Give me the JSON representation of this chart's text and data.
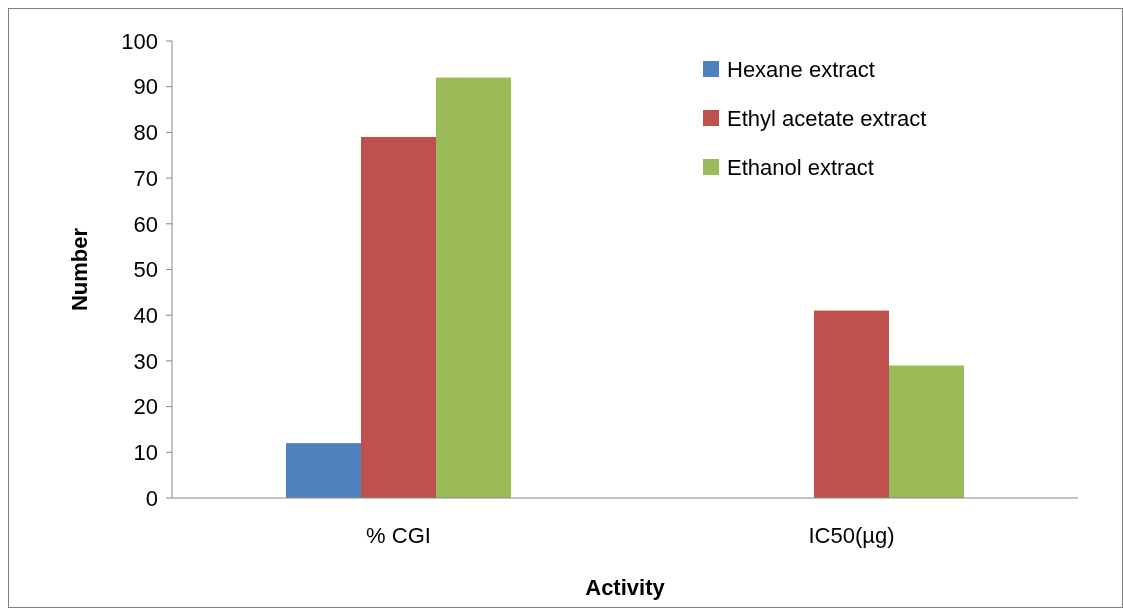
{
  "chart_data": {
    "type": "bar",
    "xlabel": "Activity",
    "ylabel": "Number",
    "categories": [
      "% CGI",
      "IC50(µg)"
    ],
    "series": [
      {
        "name": "Hexane extract",
        "color": "#4f81bd",
        "values": [
          12,
          null
        ]
      },
      {
        "name": "Ethyl acetate extract",
        "color": "#c0504d",
        "values": [
          79,
          41
        ]
      },
      {
        "name": "Ethanol extract",
        "color": "#9bbb59",
        "values": [
          92,
          29
        ]
      }
    ],
    "ylim": [
      0,
      100
    ],
    "yticks": [
      0,
      10,
      20,
      30,
      40,
      50,
      60,
      70,
      80,
      90,
      100
    ],
    "grid": false,
    "legend": "top right"
  }
}
